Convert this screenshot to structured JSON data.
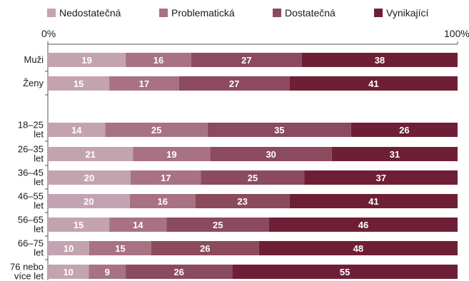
{
  "chart_data": {
    "type": "bar",
    "orientation": "horizontal",
    "stacked": "100%",
    "title": "",
    "xlabel": "",
    "ylabel": "",
    "xlim": [
      0,
      100
    ],
    "tick_labels": [
      "0%",
      "100%"
    ],
    "legend_position": "top",
    "grid": false,
    "categories": [
      "Muži",
      "Ženy",
      "18–25 let",
      "26–35 let",
      "36–45 let",
      "46–55 let",
      "56–65 let",
      "66–75 let",
      "76 nebo více let"
    ],
    "category_lines": [
      [
        "Muži"
      ],
      [
        "Ženy"
      ],
      [
        "18–25",
        "let"
      ],
      [
        "26–35",
        "let"
      ],
      [
        "36–45",
        "let"
      ],
      [
        "46–55",
        "let"
      ],
      [
        "56–65",
        "let"
      ],
      [
        "66–75",
        "let"
      ],
      [
        "76 nebo",
        "více let"
      ]
    ],
    "series": [
      {
        "name": "Nedostatečná",
        "color": "#c4a3b1",
        "values": [
          19,
          15,
          14,
          21,
          20,
          20,
          15,
          10,
          10
        ]
      },
      {
        "name": "Problematická",
        "color": "#a87282",
        "values": [
          16,
          17,
          25,
          19,
          17,
          16,
          14,
          15,
          9
        ]
      },
      {
        "name": "Dostatečná",
        "color": "#8b4a5d",
        "values": [
          27,
          27,
          35,
          30,
          25,
          23,
          25,
          26,
          26
        ]
      },
      {
        "name": "Vynikající",
        "color": "#6e1f35",
        "values": [
          38,
          41,
          26,
          31,
          37,
          41,
          46,
          48,
          55
        ]
      }
    ]
  }
}
